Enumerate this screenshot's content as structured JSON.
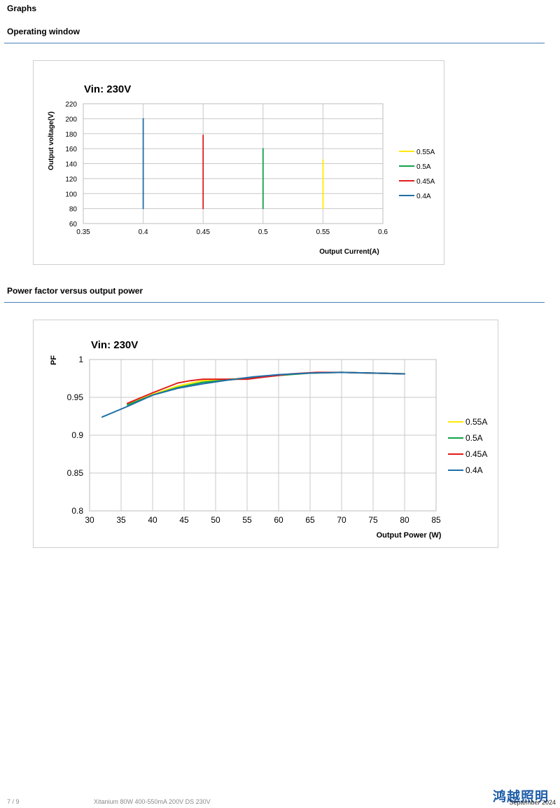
{
  "page": {
    "heading": "Graphs",
    "footer_page": "7 / 9",
    "footer_doc": "Xitanium 80W 400-550mA 200V DS 230V",
    "footer_date": "September 2024",
    "logo_text": "鸿越照明"
  },
  "sections": {
    "operating_window": "Operating window",
    "power_factor": "Power factor versus output power"
  },
  "colors": {
    "rule": "#4a7fb5",
    "series_055": "#ffea00",
    "series_05": "#12a34a",
    "series_045": "#e21b1b",
    "series_04": "#1f6fa8"
  },
  "chart_data": [
    {
      "type": "line",
      "title": "Vin: 230V",
      "xlabel": "Output Current(A)",
      "ylabel": "Output voltage(V)",
      "xlim": [
        0.35,
        0.6
      ],
      "ylim": [
        60,
        220
      ],
      "xticks": [
        "0.35",
        "0.4",
        "0.45",
        "0.5",
        "0.55",
        "0.6"
      ],
      "yticks": [
        "60",
        "80",
        "100",
        "120",
        "140",
        "160",
        "180",
        "200",
        "220"
      ],
      "grid": true,
      "legend_position": "right",
      "series": [
        {
          "name": "0.55A",
          "color": "#ffea00",
          "points": [
            [
              0.55,
              80
            ],
            [
              0.55,
              145
            ]
          ]
        },
        {
          "name": "0.5A",
          "color": "#12a34a",
          "points": [
            [
              0.5,
              80
            ],
            [
              0.5,
              160
            ]
          ]
        },
        {
          "name": "0.45A",
          "color": "#e21b1b",
          "points": [
            [
              0.45,
              80
            ],
            [
              0.45,
              178
            ]
          ]
        },
        {
          "name": "0.4A",
          "color": "#1f6fa8",
          "points": [
            [
              0.4,
              80
            ],
            [
              0.4,
              200
            ]
          ]
        }
      ]
    },
    {
      "type": "line",
      "title": "Vin: 230V",
      "xlabel": "Output Power (W)",
      "ylabel": "PF",
      "xlim": [
        30,
        85
      ],
      "ylim": [
        0.8,
        1
      ],
      "xticks": [
        "30",
        "35",
        "40",
        "45",
        "50",
        "55",
        "60",
        "65",
        "70",
        "75",
        "80",
        "85"
      ],
      "yticks": [
        "0.8",
        "0.85",
        "0.9",
        "0.95",
        "1"
      ],
      "grid": true,
      "legend_position": "right",
      "series": [
        {
          "name": "0.55A",
          "color": "#ffea00",
          "points": [
            [
              36,
              0.941
            ],
            [
              40,
              0.954
            ],
            [
              44,
              0.965
            ],
            [
              48,
              0.972
            ],
            [
              52,
              0.974
            ],
            [
              56,
              0.976
            ],
            [
              60,
              0.979
            ],
            [
              65,
              0.982
            ],
            [
              70,
              0.983
            ],
            [
              75,
              0.982
            ],
            [
              80,
              0.981
            ]
          ]
        },
        {
          "name": "0.5A",
          "color": "#12a34a",
          "points": [
            [
              36,
              0.94
            ],
            [
              40,
              0.953
            ],
            [
              44,
              0.963
            ],
            [
              48,
              0.97
            ],
            [
              52,
              0.973
            ],
            [
              56,
              0.976
            ],
            [
              60,
              0.979
            ],
            [
              65,
              0.982
            ],
            [
              70,
              0.983
            ],
            [
              75,
              0.982
            ],
            [
              80,
              0.981
            ]
          ]
        },
        {
          "name": "0.45A",
          "color": "#e21b1b",
          "points": [
            [
              36,
              0.942
            ],
            [
              40,
              0.956
            ],
            [
              44,
              0.969
            ],
            [
              46,
              0.972
            ],
            [
              48,
              0.974
            ],
            [
              51,
              0.974
            ],
            [
              55,
              0.974
            ],
            [
              58,
              0.977
            ],
            [
              62,
              0.981
            ],
            [
              66,
              0.983
            ],
            [
              70,
              0.983
            ],
            [
              75,
              0.982
            ],
            [
              80,
              0.981
            ]
          ]
        },
        {
          "name": "0.4A",
          "color": "#1f6fa8",
          "points": [
            [
              32,
              0.924
            ],
            [
              36,
              0.938
            ],
            [
              40,
              0.953
            ],
            [
              44,
              0.962
            ],
            [
              48,
              0.968
            ],
            [
              52,
              0.973
            ],
            [
              56,
              0.977
            ],
            [
              60,
              0.98
            ],
            [
              65,
              0.982
            ],
            [
              70,
              0.983
            ],
            [
              75,
              0.982
            ],
            [
              80,
              0.981
            ]
          ]
        }
      ]
    }
  ]
}
